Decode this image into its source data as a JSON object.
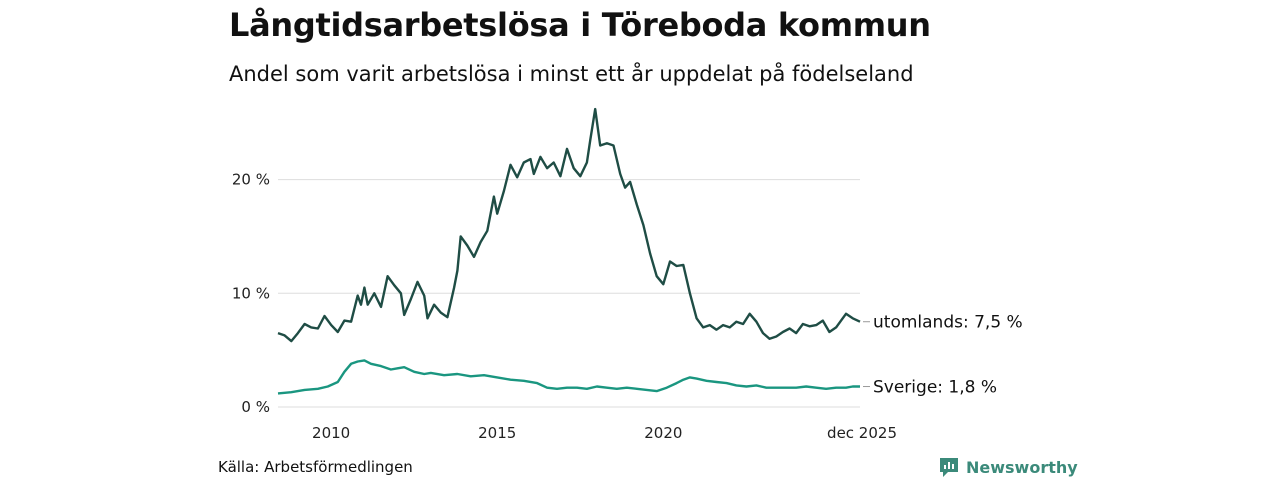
{
  "header": {
    "title": "Långtidsarbetslösa i Töreboda kommun",
    "subtitle": "Andel som varit arbetslösa i minst ett år uppdelat på födelseland"
  },
  "footer": {
    "source": "Källa: Arbetsförmedlingen",
    "brand": "Newsworthy"
  },
  "colors": {
    "utomlands": "#1f4d45",
    "sverige": "#1a9680",
    "grid": "#dddddd",
    "brand": "#3b8a7a"
  },
  "chart_data": {
    "type": "line",
    "title": "Långtidsarbetslösa i Töreboda kommun",
    "subtitle": "Andel som varit arbetslösa i minst ett år uppdelat på födelseland",
    "xlabel": "",
    "ylabel": "",
    "x_range": [
      2008.4,
      2025.92
    ],
    "ylim": [
      0,
      27
    ],
    "y_ticks": [
      0,
      10,
      20
    ],
    "y_tick_labels": [
      "0 %",
      "10 %",
      "20 %"
    ],
    "x_ticks": [
      2010,
      2015,
      2020,
      2025.92
    ],
    "x_tick_labels": [
      "2010",
      "2015",
      "2020",
      "dec 2025"
    ],
    "grid": true,
    "series": [
      {
        "name": "utomlands",
        "end_label": "utomlands: 7,5 %",
        "points": [
          [
            2008.4,
            6.5
          ],
          [
            2008.6,
            6.3
          ],
          [
            2008.8,
            5.8
          ],
          [
            2009.0,
            6.5
          ],
          [
            2009.2,
            7.3
          ],
          [
            2009.4,
            7.0
          ],
          [
            2009.6,
            6.9
          ],
          [
            2009.8,
            8.0
          ],
          [
            2010.0,
            7.2
          ],
          [
            2010.2,
            6.6
          ],
          [
            2010.4,
            7.6
          ],
          [
            2010.6,
            7.5
          ],
          [
            2010.8,
            9.8
          ],
          [
            2010.9,
            9.0
          ],
          [
            2011.0,
            10.5
          ],
          [
            2011.1,
            9.0
          ],
          [
            2011.3,
            10.0
          ],
          [
            2011.5,
            8.8
          ],
          [
            2011.7,
            11.5
          ],
          [
            2011.9,
            10.7
          ],
          [
            2012.1,
            10.0
          ],
          [
            2012.2,
            8.1
          ],
          [
            2012.4,
            9.5
          ],
          [
            2012.6,
            11.0
          ],
          [
            2012.8,
            9.8
          ],
          [
            2012.9,
            7.8
          ],
          [
            2013.1,
            9.0
          ],
          [
            2013.3,
            8.3
          ],
          [
            2013.5,
            7.9
          ],
          [
            2013.7,
            10.5
          ],
          [
            2013.8,
            12.0
          ],
          [
            2013.9,
            15.0
          ],
          [
            2014.1,
            14.2
          ],
          [
            2014.3,
            13.2
          ],
          [
            2014.5,
            14.5
          ],
          [
            2014.7,
            15.5
          ],
          [
            2014.9,
            18.5
          ],
          [
            2015.0,
            17.0
          ],
          [
            2015.2,
            19.0
          ],
          [
            2015.4,
            21.3
          ],
          [
            2015.6,
            20.2
          ],
          [
            2015.8,
            21.5
          ],
          [
            2016.0,
            21.8
          ],
          [
            2016.1,
            20.5
          ],
          [
            2016.3,
            22.0
          ],
          [
            2016.5,
            21.0
          ],
          [
            2016.7,
            21.5
          ],
          [
            2016.9,
            20.3
          ],
          [
            2017.1,
            22.7
          ],
          [
            2017.3,
            21.0
          ],
          [
            2017.5,
            20.3
          ],
          [
            2017.7,
            21.5
          ],
          [
            2017.8,
            23.5
          ],
          [
            2017.95,
            26.2
          ],
          [
            2018.1,
            23.0
          ],
          [
            2018.3,
            23.2
          ],
          [
            2018.5,
            23.0
          ],
          [
            2018.7,
            20.5
          ],
          [
            2018.85,
            19.3
          ],
          [
            2019.0,
            19.8
          ],
          [
            2019.2,
            17.8
          ],
          [
            2019.4,
            16.0
          ],
          [
            2019.6,
            13.5
          ],
          [
            2019.8,
            11.5
          ],
          [
            2020.0,
            10.8
          ],
          [
            2020.2,
            12.8
          ],
          [
            2020.4,
            12.4
          ],
          [
            2020.6,
            12.5
          ],
          [
            2020.8,
            10.0
          ],
          [
            2021.0,
            7.8
          ],
          [
            2021.2,
            7.0
          ],
          [
            2021.4,
            7.2
          ],
          [
            2021.6,
            6.8
          ],
          [
            2021.8,
            7.2
          ],
          [
            2022.0,
            7.0
          ],
          [
            2022.2,
            7.5
          ],
          [
            2022.4,
            7.3
          ],
          [
            2022.6,
            8.2
          ],
          [
            2022.8,
            7.5
          ],
          [
            2023.0,
            6.5
          ],
          [
            2023.2,
            6.0
          ],
          [
            2023.4,
            6.2
          ],
          [
            2023.6,
            6.6
          ],
          [
            2023.8,
            6.9
          ],
          [
            2024.0,
            6.5
          ],
          [
            2024.2,
            7.3
          ],
          [
            2024.4,
            7.1
          ],
          [
            2024.6,
            7.2
          ],
          [
            2024.8,
            7.6
          ],
          [
            2025.0,
            6.6
          ],
          [
            2025.2,
            7.0
          ],
          [
            2025.4,
            7.8
          ],
          [
            2025.5,
            8.2
          ],
          [
            2025.7,
            7.8
          ],
          [
            2025.92,
            7.5
          ]
        ]
      },
      {
        "name": "Sverige",
        "end_label": "Sverige: 1,8 %",
        "points": [
          [
            2008.4,
            1.2
          ],
          [
            2008.8,
            1.3
          ],
          [
            2009.2,
            1.5
          ],
          [
            2009.6,
            1.6
          ],
          [
            2009.9,
            1.8
          ],
          [
            2010.2,
            2.2
          ],
          [
            2010.4,
            3.1
          ],
          [
            2010.6,
            3.8
          ],
          [
            2010.8,
            4.0
          ],
          [
            2011.0,
            4.1
          ],
          [
            2011.2,
            3.8
          ],
          [
            2011.5,
            3.6
          ],
          [
            2011.8,
            3.3
          ],
          [
            2012.0,
            3.4
          ],
          [
            2012.2,
            3.5
          ],
          [
            2012.5,
            3.1
          ],
          [
            2012.8,
            2.9
          ],
          [
            2013.0,
            3.0
          ],
          [
            2013.4,
            2.8
          ],
          [
            2013.8,
            2.9
          ],
          [
            2014.2,
            2.7
          ],
          [
            2014.6,
            2.8
          ],
          [
            2015.0,
            2.6
          ],
          [
            2015.4,
            2.4
          ],
          [
            2015.8,
            2.3
          ],
          [
            2016.2,
            2.1
          ],
          [
            2016.5,
            1.7
          ],
          [
            2016.8,
            1.6
          ],
          [
            2017.1,
            1.7
          ],
          [
            2017.4,
            1.7
          ],
          [
            2017.7,
            1.6
          ],
          [
            2018.0,
            1.8
          ],
          [
            2018.3,
            1.7
          ],
          [
            2018.6,
            1.6
          ],
          [
            2018.9,
            1.7
          ],
          [
            2019.2,
            1.6
          ],
          [
            2019.5,
            1.5
          ],
          [
            2019.8,
            1.4
          ],
          [
            2020.1,
            1.7
          ],
          [
            2020.4,
            2.1
          ],
          [
            2020.6,
            2.4
          ],
          [
            2020.8,
            2.6
          ],
          [
            2021.0,
            2.5
          ],
          [
            2021.3,
            2.3
          ],
          [
            2021.6,
            2.2
          ],
          [
            2021.9,
            2.1
          ],
          [
            2022.2,
            1.9
          ],
          [
            2022.5,
            1.8
          ],
          [
            2022.8,
            1.9
          ],
          [
            2023.1,
            1.7
          ],
          [
            2023.4,
            1.7
          ],
          [
            2023.7,
            1.7
          ],
          [
            2024.0,
            1.7
          ],
          [
            2024.3,
            1.8
          ],
          [
            2024.6,
            1.7
          ],
          [
            2024.9,
            1.6
          ],
          [
            2025.2,
            1.7
          ],
          [
            2025.5,
            1.7
          ],
          [
            2025.7,
            1.8
          ],
          [
            2025.92,
            1.8
          ]
        ]
      }
    ]
  }
}
